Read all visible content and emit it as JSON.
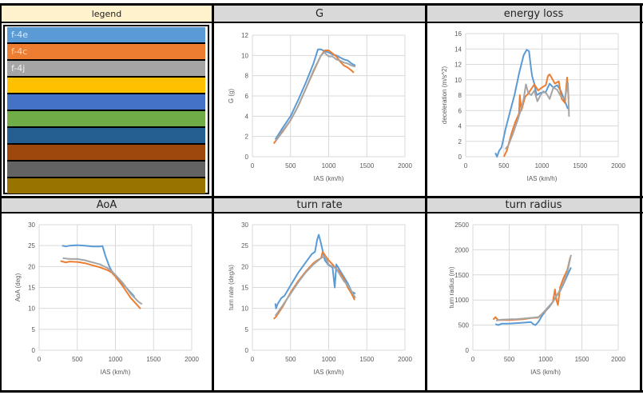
{
  "legend": {
    "title": "legend",
    "items": [
      {
        "label": "f-4e",
        "color": "#5b9bd5",
        "text_color": "#dbe8f6"
      },
      {
        "label": "f-4c",
        "color": "#ed7d31",
        "text_color": "#fbd7bf"
      },
      {
        "label": "f-4j",
        "color": "#a5a5a5",
        "text_color": "#eeeeee"
      },
      {
        "label": "",
        "color": "#ffc000",
        "text_color": "#ffffff"
      },
      {
        "label": "",
        "color": "#4472c4",
        "text_color": "#ffffff"
      },
      {
        "label": "",
        "color": "#70ad47",
        "text_color": "#ffffff"
      },
      {
        "label": "",
        "color": "#255e91",
        "text_color": "#ffffff"
      },
      {
        "label": "",
        "color": "#9e480e",
        "text_color": "#ffffff"
      },
      {
        "label": "",
        "color": "#636363",
        "text_color": "#ffffff"
      },
      {
        "label": "",
        "color": "#997300",
        "text_color": "#ffffff"
      }
    ]
  },
  "colors": {
    "f-4e": "#5b9bd5",
    "f-4c": "#ed7d31",
    "f-4j": "#a5a5a5",
    "grid": "#d9d9d9",
    "header_bg": "#d9d9d9",
    "legend_header_bg": "#fff2cc"
  },
  "chart_data": [
    {
      "id": "g",
      "type": "line",
      "title": "G",
      "xlabel": "IAS (km/h)",
      "ylabel": "G (g)",
      "xlim": [
        0,
        2000
      ],
      "ylim": [
        0,
        12
      ],
      "xticks": [
        0,
        500,
        1000,
        1500,
        2000
      ],
      "xtick_labels": [
        "0",
        "500",
        "1000",
        "1500",
        "2000"
      ],
      "yticks": [
        0,
        2,
        4,
        6,
        8,
        10,
        12
      ],
      "ytick_labels": [
        "0",
        "2",
        "4",
        "6",
        "8",
        "10",
        "12"
      ],
      "grid": true,
      "series": [
        {
          "name": "f-4e",
          "x": [
            300,
            400,
            500,
            600,
            700,
            800,
            860,
            900,
            950,
            1000,
            1050,
            1100,
            1150,
            1200,
            1250,
            1300,
            1350
          ],
          "y": [
            1.7,
            2.9,
            4.0,
            5.6,
            7.3,
            9.2,
            10.6,
            10.6,
            10.4,
            10.3,
            10.1,
            10.0,
            9.8,
            9.6,
            9.5,
            9.2,
            9.0
          ]
        },
        {
          "name": "f-4c",
          "x": [
            280,
            400,
            500,
            600,
            700,
            800,
            900,
            950,
            1000,
            1050,
            1100,
            1150,
            1200,
            1250,
            1300,
            1330
          ],
          "y": [
            1.3,
            2.5,
            3.6,
            5.0,
            6.7,
            8.4,
            10.0,
            10.5,
            10.5,
            10.2,
            9.9,
            9.4,
            9.0,
            8.8,
            8.5,
            8.3
          ]
        },
        {
          "name": "f-4j",
          "x": [
            310,
            400,
            500,
            600,
            700,
            800,
            900,
            940,
            1000,
            1050,
            1100,
            1150,
            1200,
            1250,
            1300,
            1350
          ],
          "y": [
            1.6,
            2.6,
            3.6,
            5.0,
            6.7,
            8.5,
            10.0,
            10.3,
            9.9,
            9.9,
            9.6,
            9.5,
            9.3,
            9.2,
            9.0,
            8.9
          ]
        }
      ]
    },
    {
      "id": "energy",
      "type": "line",
      "title": "energy loss",
      "xlabel": "IAS (km/h)",
      "ylabel": "deceleration (m/s^2)",
      "xlim": [
        0,
        2000
      ],
      "ylim": [
        0,
        16
      ],
      "xticks": [
        0,
        500,
        1000,
        1500,
        2000
      ],
      "xtick_labels": [
        "0",
        "500",
        "1000",
        "1500",
        "2000"
      ],
      "yticks": [
        0,
        2,
        4,
        6,
        8,
        10,
        12,
        14,
        16
      ],
      "ytick_labels": [
        "0",
        "2",
        "4",
        "6",
        "8",
        "10",
        "12",
        "14",
        "16"
      ],
      "grid": true,
      "series": [
        {
          "name": "f-4e",
          "x": [
            390,
            410,
            440,
            470,
            520,
            580,
            640,
            700,
            760,
            800,
            830,
            850,
            870,
            900,
            930,
            980,
            1050,
            1100,
            1150,
            1200,
            1250,
            1300,
            1340
          ],
          "y": [
            0.5,
            0,
            0.8,
            1.2,
            3.5,
            5.8,
            8.0,
            10.8,
            13.2,
            13.9,
            13.7,
            12.0,
            10.5,
            9.5,
            8.0,
            8.3,
            8.4,
            9.5,
            9.0,
            9.3,
            8.5,
            7.2,
            6.2
          ]
        },
        {
          "name": "f-4c",
          "x": [
            500,
            540,
            600,
            650,
            700,
            710,
            730,
            780,
            820,
            900,
            950,
            1000,
            1050,
            1080,
            1100,
            1130,
            1170,
            1220,
            1260,
            1300,
            1330,
            1350
          ],
          "y": [
            0,
            0.8,
            3.0,
            4.5,
            5.6,
            8.0,
            6.0,
            7.8,
            8.2,
            9.4,
            8.6,
            9.0,
            9.3,
            10.5,
            10.7,
            10.2,
            9.5,
            9.8,
            7.5,
            7.0,
            10.3,
            7.5
          ]
        },
        {
          "name": "f-4j",
          "x": [
            520,
            560,
            620,
            680,
            720,
            760,
            790,
            820,
            860,
            900,
            940,
            980,
            1020,
            1060,
            1100,
            1150,
            1200,
            1250,
            1300,
            1340,
            1355
          ],
          "y": [
            1.0,
            1.5,
            3.0,
            4.7,
            6.0,
            7.5,
            9.4,
            8.3,
            8.0,
            8.6,
            7.2,
            8.0,
            8.5,
            8.2,
            7.5,
            9.0,
            8.7,
            7.8,
            7.6,
            9.6,
            5.2
          ]
        }
      ]
    },
    {
      "id": "aoa",
      "type": "line",
      "title": "AoA",
      "xlabel": "IAS (km/h)",
      "ylabel": "AoA (deg)",
      "xlim": [
        0,
        2000
      ],
      "ylim": [
        0,
        30
      ],
      "xticks": [
        0,
        500,
        1000,
        1500,
        2000
      ],
      "xtick_labels": [
        "0",
        "500",
        "1000",
        "1500",
        "2000"
      ],
      "yticks": [
        0,
        5,
        10,
        15,
        20,
        25,
        30
      ],
      "ytick_labels": [
        "0",
        "5",
        "10",
        "15",
        "20",
        "25",
        "30"
      ],
      "grid": true,
      "series": [
        {
          "name": "f-4e",
          "x": [
            300,
            350,
            400,
            500,
            600,
            700,
            800,
            830,
            870,
            920,
            950,
            1000,
            1100,
            1200,
            1250
          ],
          "y": [
            25.0,
            24.8,
            25.0,
            25.1,
            25.0,
            24.8,
            24.8,
            24.9,
            22.5,
            20.0,
            19.0,
            17.8,
            15.8,
            13.8,
            12.8
          ]
        },
        {
          "name": "f-4c",
          "x": [
            280,
            350,
            400,
            500,
            600,
            700,
            800,
            900,
            950,
            1000,
            1100,
            1200,
            1300,
            1330
          ],
          "y": [
            21.3,
            21.0,
            21.2,
            21.1,
            20.8,
            20.3,
            19.8,
            19.1,
            18.6,
            17.6,
            15.2,
            12.5,
            10.5,
            9.9
          ]
        },
        {
          "name": "f-4j",
          "x": [
            310,
            400,
            500,
            600,
            700,
            800,
            900,
            950,
            1000,
            1100,
            1200,
            1300,
            1350
          ],
          "y": [
            22.0,
            21.8,
            21.8,
            21.5,
            21.0,
            20.5,
            19.6,
            18.9,
            18.0,
            16.0,
            13.5,
            11.6,
            11.0
          ]
        }
      ]
    },
    {
      "id": "turnrate",
      "type": "line",
      "title": "turn rate",
      "xlabel": "IAS (km/h)",
      "ylabel": "turn rate (deg/s)",
      "xlim": [
        0,
        2000
      ],
      "ylim": [
        0,
        30
      ],
      "xticks": [
        0,
        500,
        1000,
        1500,
        2000
      ],
      "xtick_labels": [
        "0",
        "500",
        "1000",
        "1500",
        "2000"
      ],
      "yticks": [
        0,
        5,
        10,
        15,
        20,
        25,
        30
      ],
      "ytick_labels": [
        "0",
        "5",
        "10",
        "15",
        "20",
        "25",
        "30"
      ],
      "grid": true,
      "series": [
        {
          "name": "f-4e",
          "x": [
            300,
            310,
            330,
            380,
            420,
            500,
            600,
            700,
            780,
            820,
            850,
            870,
            900,
            950,
            1000,
            1050,
            1080,
            1100,
            1150,
            1200,
            1250,
            1300,
            1350
          ],
          "y": [
            11.2,
            10.0,
            11.0,
            12.5,
            13.0,
            15.5,
            18.5,
            21.0,
            23.0,
            23.5,
            26.5,
            27.6,
            25.5,
            21.5,
            20.3,
            19.8,
            15.0,
            20.5,
            19.0,
            17.5,
            16.0,
            14.0,
            13.5
          ]
        },
        {
          "name": "f-4c",
          "x": [
            280,
            310,
            400,
            500,
            600,
            700,
            800,
            850,
            900,
            920,
            960,
            1000,
            1050,
            1100,
            1150,
            1200,
            1250,
            1300,
            1340
          ],
          "y": [
            7.5,
            8.0,
            10.5,
            13.8,
            16.5,
            18.8,
            20.8,
            21.5,
            22.0,
            23.5,
            22.5,
            21.5,
            20.5,
            19.5,
            18.5,
            17.0,
            15.0,
            13.5,
            12.0
          ]
        },
        {
          "name": "f-4j",
          "x": [
            300,
            400,
            500,
            600,
            700,
            800,
            900,
            950,
            1000,
            1050,
            1100,
            1150,
            1200,
            1250,
            1300,
            1350
          ],
          "y": [
            8.2,
            10.8,
            13.5,
            16.2,
            18.6,
            20.5,
            22.0,
            22.5,
            20.5,
            20.0,
            19.5,
            18.0,
            16.5,
            15.5,
            14.0,
            12.5
          ]
        }
      ]
    },
    {
      "id": "turnradius",
      "type": "line",
      "title": "turn radius",
      "xlabel": "IAS (km/h)",
      "ylabel": "turn radius (m)",
      "xlim": [
        0,
        2000
      ],
      "ylim": [
        0,
        2500
      ],
      "xticks": [
        0,
        500,
        1000,
        1500,
        2000
      ],
      "xtick_labels": [
        "0",
        "500",
        "1000",
        "1500",
        "2000"
      ],
      "yticks": [
        0,
        500,
        1000,
        1500,
        2000,
        2500
      ],
      "ytick_labels": [
        "0",
        "500",
        "1000",
        "1500",
        "2000",
        "2500"
      ],
      "grid": true,
      "series": [
        {
          "name": "f-4e",
          "x": [
            310,
            350,
            400,
            500,
            600,
            700,
            800,
            830,
            860,
            900,
            950,
            1000,
            1050,
            1100,
            1150,
            1200,
            1250,
            1300,
            1350
          ],
          "y": [
            520,
            500,
            530,
            530,
            540,
            550,
            560,
            520,
            500,
            560,
            680,
            780,
            860,
            960,
            1080,
            1180,
            1330,
            1490,
            1650
          ]
        },
        {
          "name": "f-4c",
          "x": [
            280,
            310,
            350,
            400,
            500,
            600,
            700,
            800,
            900,
            950,
            1000,
            1050,
            1100,
            1130,
            1150,
            1170,
            1200,
            1250,
            1300,
            1340
          ],
          "y": [
            610,
            660,
            600,
            600,
            600,
            610,
            620,
            640,
            650,
            720,
            790,
            880,
            960,
            1210,
            1000,
            900,
            1250,
            1450,
            1600,
            1850
          ]
        },
        {
          "name": "f-4j",
          "x": [
            320,
            400,
            500,
            600,
            700,
            800,
            900,
            950,
            1000,
            1050,
            1100,
            1150,
            1200,
            1250,
            1300,
            1350
          ],
          "y": [
            590,
            610,
            615,
            620,
            630,
            645,
            660,
            720,
            800,
            880,
            960,
            1080,
            1200,
            1350,
            1560,
            1900
          ]
        }
      ]
    }
  ]
}
